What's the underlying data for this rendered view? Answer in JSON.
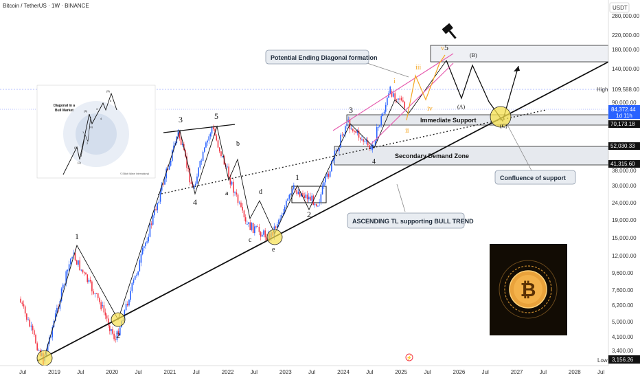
{
  "header": {
    "title": "Bitcoin / TetherUS · 1W · BINANCE",
    "currency": "USDT"
  },
  "axis": {
    "y_ticks": [
      "280,000.00",
      "220,000.00",
      "180,000.00",
      "140,000.00",
      "109,588.00",
      "90,000.00",
      "84,372.44",
      "70,173.18",
      "52,030.33",
      "41,315.60",
      "38,000.00",
      "30,000.00",
      "24,000.00",
      "19,000.00",
      "15,000.00",
      "12,000.00",
      "9,600.00",
      "7,600.00",
      "6,200.00",
      "5,000.00",
      "4,100.00",
      "3,400.00",
      "3,156.26"
    ],
    "x_ticks": [
      "Jul",
      "2019",
      "Jul",
      "2020",
      "Jul",
      "2021",
      "Jul",
      "2022",
      "Jul",
      "2023",
      "Jul",
      "2024",
      "Jul",
      "2025",
      "Jul",
      "2026",
      "Jul",
      "2027",
      "Jul",
      "2028",
      "Jul"
    ],
    "high_label": "High",
    "low_label": "Low"
  },
  "badges": {
    "current_price": "84,372.44",
    "countdown": "1d 11h",
    "immediate_support": "70,173.18",
    "demand_top": "52,030.33",
    "demand_bottom": "41,315.60",
    "high_price": "109,588.00",
    "low_price": "3,156.26"
  },
  "callouts": {
    "ending_diagonal": "Potential Ending Diagonal formation",
    "immediate_support": "Immediate Support",
    "secondary_demand": "Secondary Demand Zone",
    "confluence": "Confluence of support",
    "ascending_tl": "ASCENDING TL supporting BULL TREND"
  },
  "waves": {
    "w1_2019": "1",
    "w2_2020": "2",
    "w3_2021": "3",
    "w4_2021": "4",
    "w5_2021": "5",
    "a": "a",
    "b": "b",
    "c": "c",
    "d": "d",
    "e": "e",
    "w1_2023": "1",
    "w2_2023": "2",
    "w3_2024": "3",
    "w4_2024": "4",
    "w5_top": "5",
    "i": "i",
    "ii": "ii",
    "iii": "iii",
    "iv": "iv",
    "v": "v",
    "A": "(A)",
    "B": "(B)",
    "C": "(C)"
  },
  "inset": {
    "title_line1": "Diagonal in a",
    "title_line2": "Bull Market",
    "labels": [
      "(1)",
      "(2)",
      "(3)",
      "(4)",
      "(5)",
      "1",
      "2",
      "3",
      "4",
      "5"
    ],
    "credit": "© Elliott Wave International"
  },
  "colors": {
    "up": "#2962ff",
    "down": "#f23645",
    "zone": "#e4e8ee",
    "trendline": "#000000",
    "diagonal": "#e65fb0",
    "subwave": "#f5a623",
    "highlight": "#f6e04e",
    "badge_dark": "#111111"
  },
  "chart_data": {
    "type": "line",
    "title": "Bitcoin / TetherUS · 1W · BINANCE",
    "xlabel": "",
    "ylabel": "USDT",
    "y_scale": "log",
    "x": [
      "2018-07",
      "2018-12",
      "2019-06",
      "2019-12",
      "2020-03",
      "2020-08",
      "2021-04",
      "2021-07",
      "2021-11",
      "2022-06",
      "2022-11",
      "2023-04",
      "2023-09",
      "2024-03",
      "2024-08",
      "2024-12",
      "2025-02",
      "2025-03"
    ],
    "series": [
      {
        "values": [
          7200,
          3200,
          13000,
          6600,
          4200,
          11500,
          63000,
          30000,
          67000,
          19000,
          16000,
          30000,
          25000,
          72000,
          50000,
          107000,
          98000,
          84372.44
        ]
      }
    ],
    "levels": {
      "high": 109588,
      "low": 3156.26,
      "immediate_support": 70173.18,
      "demand_top": 52030.33,
      "demand_bottom": 41315.6
    },
    "ylim": [
      3000,
      300000
    ]
  }
}
